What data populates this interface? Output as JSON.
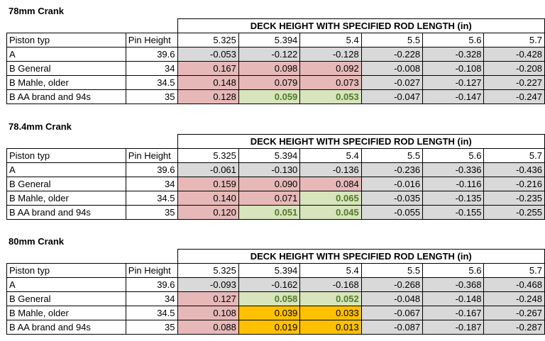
{
  "sections": [
    {
      "title": "78mm Crank",
      "header": "DECK HEIGHT WITH SPECIFIED ROD LENGTH (in)",
      "columns": [
        "Piston typ",
        "Pin Height",
        "5.325",
        "5.394",
        "5.4",
        "5.5",
        "5.6",
        "5.7"
      ],
      "rows": [
        {
          "label": "A",
          "pin": "39.6",
          "values": [
            "-0.053",
            "-0.122",
            "-0.128",
            "-0.228",
            "-0.328",
            "-0.428"
          ],
          "colors": [
            "gray",
            "gray",
            "gray",
            "gray",
            "gray",
            "gray"
          ]
        },
        {
          "label": "B General",
          "pin": "34",
          "values": [
            "0.167",
            "0.098",
            "0.092",
            "-0.008",
            "-0.108",
            "-0.208"
          ],
          "colors": [
            "pink",
            "pink",
            "pink",
            "gray",
            "gray",
            "gray"
          ]
        },
        {
          "label": "B Mahle, older",
          "pin": "34.5",
          "values": [
            "0.148",
            "0.079",
            "0.073",
            "-0.027",
            "-0.127",
            "-0.227"
          ],
          "colors": [
            "pink",
            "pink",
            "pink",
            "gray",
            "gray",
            "gray"
          ]
        },
        {
          "label": "B AA brand and 94s",
          "pin": "35",
          "values": [
            "0.128",
            "0.059",
            "0.053",
            "-0.047",
            "-0.147",
            "-0.247"
          ],
          "colors": [
            "pink",
            "green",
            "green",
            "gray",
            "gray",
            "gray"
          ]
        }
      ]
    },
    {
      "title": "78.4mm Crank",
      "header": "DECK HEIGHT WITH SPECIFIED ROD LENGTH (in)",
      "columns": [
        "Piston typ",
        "Pin Height",
        "5.325",
        "5.394",
        "5.4",
        "5.5",
        "5.6",
        "5.7"
      ],
      "rows": [
        {
          "label": "A",
          "pin": "39.6",
          "values": [
            "-0.061",
            "-0.130",
            "-0.136",
            "-0.236",
            "-0.336",
            "-0.436"
          ],
          "colors": [
            "gray",
            "gray",
            "gray",
            "gray",
            "gray",
            "gray"
          ]
        },
        {
          "label": "B General",
          "pin": "34",
          "values": [
            "0.159",
            "0.090",
            "0.084",
            "-0.016",
            "-0.116",
            "-0.216"
          ],
          "colors": [
            "pink",
            "pink",
            "pink",
            "gray",
            "gray",
            "gray"
          ]
        },
        {
          "label": "B Mahle, older",
          "pin": "34.5",
          "values": [
            "0.140",
            "0.071",
            "0.065",
            "-0.035",
            "-0.135",
            "-0.235"
          ],
          "colors": [
            "pink",
            "pink",
            "green",
            "gray",
            "gray",
            "gray"
          ]
        },
        {
          "label": "B AA brand and 94s",
          "pin": "35",
          "values": [
            "0.120",
            "0.051",
            "0.045",
            "-0.055",
            "-0.155",
            "-0.255"
          ],
          "colors": [
            "pink",
            "green",
            "green",
            "gray",
            "gray",
            "gray"
          ]
        }
      ]
    },
    {
      "title": "80mm Crank",
      "header": "DECK HEIGHT WITH SPECIFIED ROD LENGTH (in)",
      "columns": [
        "Piston typ",
        "Pin Height",
        "5.325",
        "5.394",
        "5.4",
        "5.5",
        "5.6",
        "5.7"
      ],
      "rows": [
        {
          "label": "A",
          "pin": "39.6",
          "values": [
            "-0.093",
            "-0.162",
            "-0.168",
            "-0.268",
            "-0.368",
            "-0.468"
          ],
          "colors": [
            "gray",
            "gray",
            "gray",
            "gray",
            "gray",
            "gray"
          ]
        },
        {
          "label": "B General",
          "pin": "34",
          "values": [
            "0.127",
            "0.058",
            "0.052",
            "-0.048",
            "-0.148",
            "-0.248"
          ],
          "colors": [
            "pink",
            "green",
            "green",
            "gray",
            "gray",
            "gray"
          ]
        },
        {
          "label": "B Mahle, older",
          "pin": "34.5",
          "values": [
            "0.108",
            "0.039",
            "0.033",
            "-0.067",
            "-0.167",
            "-0.267"
          ],
          "colors": [
            "pink",
            "orange",
            "orange",
            "gray",
            "gray",
            "gray"
          ]
        },
        {
          "label": "B AA brand and 94s",
          "pin": "35",
          "values": [
            "0.088",
            "0.019",
            "0.013",
            "-0.087",
            "-0.187",
            "-0.287"
          ],
          "colors": [
            "pink",
            "orange",
            "orange",
            "gray",
            "gray",
            "gray"
          ]
        }
      ]
    }
  ],
  "palette": {
    "pink": "#e6b9b8",
    "gray": "#d9d9d9",
    "green": "#d7e4bc",
    "green_text": "#4f7a28",
    "orange": "#ffc000"
  }
}
